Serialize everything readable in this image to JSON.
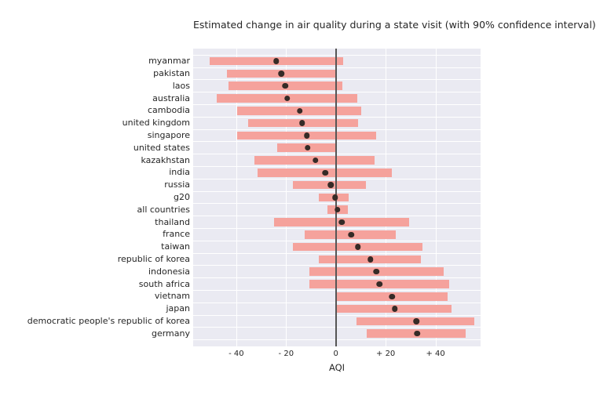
{
  "title": "Estimated change in air quality during a state visit (with 90% confidence interval)",
  "chart_data": {
    "type": "bar",
    "subtype": "horizontal-interval-with-point-estimate",
    "title": "Estimated change in air quality during a state visit (with 90% confidence interval)",
    "xlabel": "AQI",
    "ylabel": "",
    "xlim": [
      -57.3,
      58.1
    ],
    "xticks": [
      -40,
      -20,
      0,
      20,
      40
    ],
    "xtick_labels": [
      "- 40",
      "- 20",
      "0",
      "+ 20",
      "+ 40"
    ],
    "grid": true,
    "zero_line": true,
    "legend_position": "none",
    "categories": [
      "myanmar",
      "pakistan",
      "laos",
      "australia",
      "cambodia",
      "united kingdom",
      "singapore",
      "united states",
      "kazakhstan",
      "india",
      "russia",
      "g20",
      "all countries",
      "thailand",
      "france",
      "taiwan",
      "republic of korea",
      "indonesia",
      "south africa",
      "vietnam",
      "japan",
      "democratic people's republic of korea",
      "germany"
    ],
    "series": [
      {
        "name": "ci_low_90",
        "values": [
          -50.8,
          -43.8,
          -43.1,
          -47.9,
          -39.7,
          -35.2,
          -39.7,
          -23.5,
          -32.7,
          -31.6,
          -17.2,
          -6.8,
          -3.5,
          -24.7,
          -12.4,
          -17.2,
          -6.9,
          -10.6,
          -10.6,
          0.2,
          0.4,
          8.4,
          12.3
        ]
      },
      {
        "name": "point_estimate",
        "values": [
          -24.0,
          -21.9,
          -20.3,
          -19.5,
          -14.5,
          -13.5,
          -11.7,
          -11.4,
          -8.2,
          -4.3,
          -2.1,
          -0.3,
          0.7,
          2.3,
          6.2,
          8.9,
          13.9,
          16.3,
          17.5,
          22.6,
          23.7,
          32.3,
          32.6
        ]
      },
      {
        "name": "ci_high_90",
        "values": [
          2.8,
          0.5,
          2.6,
          8.6,
          10.2,
          8.9,
          16.1,
          0.2,
          15.6,
          22.6,
          12.1,
          5.2,
          4.9,
          29.3,
          24.2,
          34.7,
          34.2,
          43.3,
          45.4,
          44.9,
          46.5,
          55.7,
          52.0
        ]
      }
    ]
  },
  "colors": {
    "figure_bg": "#FFFFFF",
    "plot_bg": "#EAEAF2",
    "bar": "#F5A29C",
    "point": "#362B27",
    "grid": "#FFFFFF",
    "zero_line": "#555555",
    "text": "#262626"
  }
}
